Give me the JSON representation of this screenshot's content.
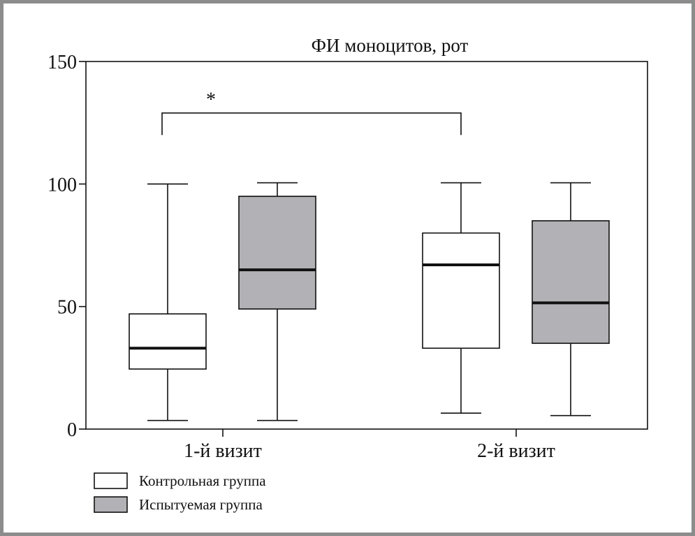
{
  "chart_data": {
    "type": "box",
    "title": "ФИ моноцитов, рот",
    "xlabel": "",
    "ylabel": "",
    "ylim": [
      0,
      150
    ],
    "yticks": [
      0,
      50,
      100,
      150
    ],
    "categories": [
      "1-й визит",
      "2-й визит"
    ],
    "grid": false,
    "legend_position": "bottom-left",
    "series": [
      {
        "name": "Контрольная группа",
        "color": "#ffffff",
        "boxes": [
          {
            "min": 3.5,
            "q1": 24.5,
            "median": 33,
            "q3": 47,
            "max": 100
          },
          {
            "min": 6.5,
            "q1": 33,
            "median": 67,
            "q3": 80,
            "max": 100.5
          }
        ]
      },
      {
        "name": "Испытуемая группа",
        "color": "#b2b2b6",
        "boxes": [
          {
            "min": 3.5,
            "q1": 49,
            "median": 65,
            "q3": 95,
            "max": 100.5
          },
          {
            "min": 5.5,
            "q1": 35,
            "median": 51.5,
            "q3": 85,
            "max": 100.5
          }
        ]
      }
    ],
    "annotations": [
      {
        "text": "*",
        "bracket_y": 129,
        "bracket_drop_to": 120
      }
    ]
  }
}
